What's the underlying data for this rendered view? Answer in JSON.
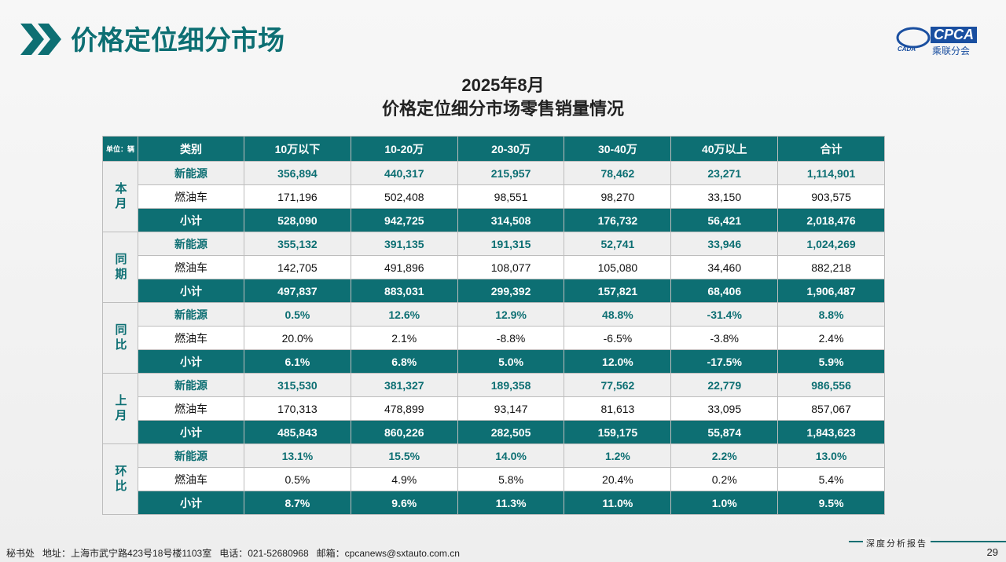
{
  "header": {
    "title": "价格定位细分市场",
    "logo": {
      "mark": "CADA",
      "name": "CPCA",
      "org": "乘联分会"
    }
  },
  "subtitle": [
    "2025年8月",
    "价格定位细分市场零售销量情况"
  ],
  "table": {
    "unit": "单位：辆",
    "columns": [
      "类别",
      "10万以下",
      "10-20万",
      "20-30万",
      "30-40万",
      "40万以上",
      "合计"
    ],
    "groups": [
      {
        "label": "本月",
        "rows": [
          {
            "name": "新能源",
            "values": [
              "356,894",
              "440,317",
              "215,957",
              "78,462",
              "23,271",
              "1,114,901"
            ]
          },
          {
            "name": "燃油车",
            "values": [
              "171,196",
              "502,408",
              "98,551",
              "98,270",
              "33,150",
              "903,575"
            ]
          },
          {
            "name": "小计",
            "values": [
              "528,090",
              "942,725",
              "314,508",
              "176,732",
              "56,421",
              "2,018,476"
            ]
          }
        ]
      },
      {
        "label": "同期",
        "rows": [
          {
            "name": "新能源",
            "values": [
              "355,132",
              "391,135",
              "191,315",
              "52,741",
              "33,946",
              "1,024,269"
            ]
          },
          {
            "name": "燃油车",
            "values": [
              "142,705",
              "491,896",
              "108,077",
              "105,080",
              "34,460",
              "882,218"
            ]
          },
          {
            "name": "小计",
            "values": [
              "497,837",
              "883,031",
              "299,392",
              "157,821",
              "68,406",
              "1,906,487"
            ]
          }
        ]
      },
      {
        "label": "同比",
        "rows": [
          {
            "name": "新能源",
            "values": [
              "0.5%",
              "12.6%",
              "12.9%",
              "48.8%",
              "-31.4%",
              "8.8%"
            ]
          },
          {
            "name": "燃油车",
            "values": [
              "20.0%",
              "2.1%",
              "-8.8%",
              "-6.5%",
              "-3.8%",
              "2.4%"
            ]
          },
          {
            "name": "小计",
            "values": [
              "6.1%",
              "6.8%",
              "5.0%",
              "12.0%",
              "-17.5%",
              "5.9%"
            ]
          }
        ]
      },
      {
        "label": "上月",
        "rows": [
          {
            "name": "新能源",
            "values": [
              "315,530",
              "381,327",
              "189,358",
              "77,562",
              "22,779",
              "986,556"
            ]
          },
          {
            "name": "燃油车",
            "values": [
              "170,313",
              "478,899",
              "93,147",
              "81,613",
              "33,095",
              "857,067"
            ]
          },
          {
            "name": "小计",
            "values": [
              "485,843",
              "860,226",
              "282,505",
              "159,175",
              "55,874",
              "1,843,623"
            ]
          }
        ]
      },
      {
        "label": "环比",
        "rows": [
          {
            "name": "新能源",
            "values": [
              "13.1%",
              "15.5%",
              "14.0%",
              "1.2%",
              "2.2%",
              "13.0%"
            ]
          },
          {
            "name": "燃油车",
            "values": [
              "0.5%",
              "4.9%",
              "5.8%",
              "20.4%",
              "0.2%",
              "5.4%"
            ]
          },
          {
            "name": "小计",
            "values": [
              "8.7%",
              "9.6%",
              "11.3%",
              "11.0%",
              "1.0%",
              "9.5%"
            ]
          }
        ]
      }
    ]
  },
  "footer": {
    "office": "秘书处",
    "address": "地址：上海市武宁路423号18号楼1103室",
    "phone": "电话：021-52680968",
    "email": "邮箱：cpcanews@sxtauto.com.cn",
    "tagline": "深度分析报告",
    "page": "29"
  }
}
